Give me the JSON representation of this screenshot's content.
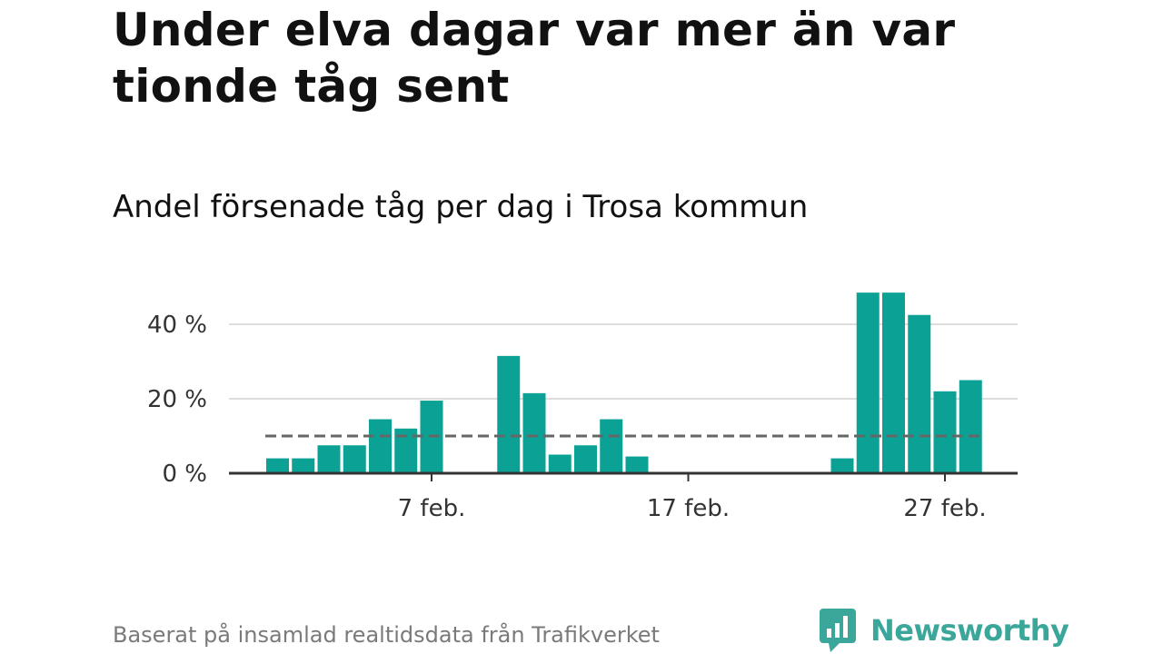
{
  "title": "Under elva dagar var mer än var tionde tåg sent",
  "subtitle": "Andel försenade tåg per dag i Trosa kommun",
  "source": "Baserat på insamlad realtidsdata från Trafikverket",
  "brand": "Newsworthy",
  "colors": {
    "bar": "#0ba195",
    "reference": "#666666",
    "grid": "#dddddd",
    "axis": "#333333",
    "brand": "#3aa79a"
  },
  "chart_data": {
    "type": "bar",
    "x": [
      "1 feb.",
      "2 feb.",
      "3 feb.",
      "4 feb.",
      "5 feb.",
      "6 feb.",
      "7 feb.",
      "8 feb.",
      "9 feb.",
      "10 feb.",
      "11 feb.",
      "12 feb.",
      "13 feb.",
      "14 feb.",
      "15 feb.",
      "16 feb.",
      "17 feb.",
      "18 feb.",
      "19 feb.",
      "20 feb.",
      "21 feb.",
      "22 feb.",
      "23 feb.",
      "24 feb.",
      "25 feb.",
      "26 feb.",
      "27 feb.",
      "28 feb."
    ],
    "values": [
      4,
      4,
      7.5,
      7.5,
      14.5,
      12,
      19.5,
      0,
      0,
      31.5,
      21.5,
      5,
      7.5,
      14.5,
      4.5,
      0,
      0,
      0,
      0,
      0,
      0,
      0,
      4,
      48.5,
      48.5,
      42.5,
      22,
      25
    ],
    "reference_line": {
      "value": 10,
      "style": "dashed"
    },
    "ylim": [
      0,
      50
    ],
    "yticks": [
      0,
      20,
      40
    ],
    "ytick_labels": [
      "0 %",
      "20 %",
      "40 %"
    ],
    "xticks": [
      "7 feb.",
      "17 feb.",
      "27 feb."
    ],
    "grid": true,
    "legend": "none",
    "xlabel": "",
    "ylabel": ""
  }
}
